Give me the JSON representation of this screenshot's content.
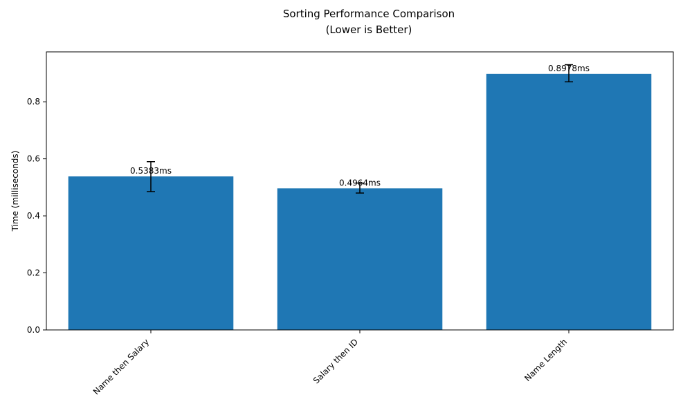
{
  "chart_data": {
    "type": "bar",
    "title_lines": [
      "Sorting Performance Comparison",
      "(Lower is Better)"
    ],
    "ylabel": "Time (milliseconds)",
    "xlabel": "",
    "categories": [
      "Name then Salary",
      "Salary then ID",
      "Name Length"
    ],
    "values": [
      0.5383,
      0.4964,
      0.8978
    ],
    "error_low": [
      0.485,
      0.48,
      0.87
    ],
    "error_high": [
      0.59,
      0.515,
      0.93
    ],
    "data_labels": [
      "0.5383ms",
      "0.4964ms",
      "0.8978ms"
    ],
    "yticks": [
      0.0,
      0.2,
      0.4,
      0.6,
      0.8
    ],
    "ytick_labels": [
      "0.0",
      "0.2",
      "0.4",
      "0.6",
      "0.8"
    ],
    "ylim": [
      0,
      0.975
    ],
    "grid": false,
    "colors": {
      "bar": "#1f77b4",
      "error": "#000000"
    }
  }
}
